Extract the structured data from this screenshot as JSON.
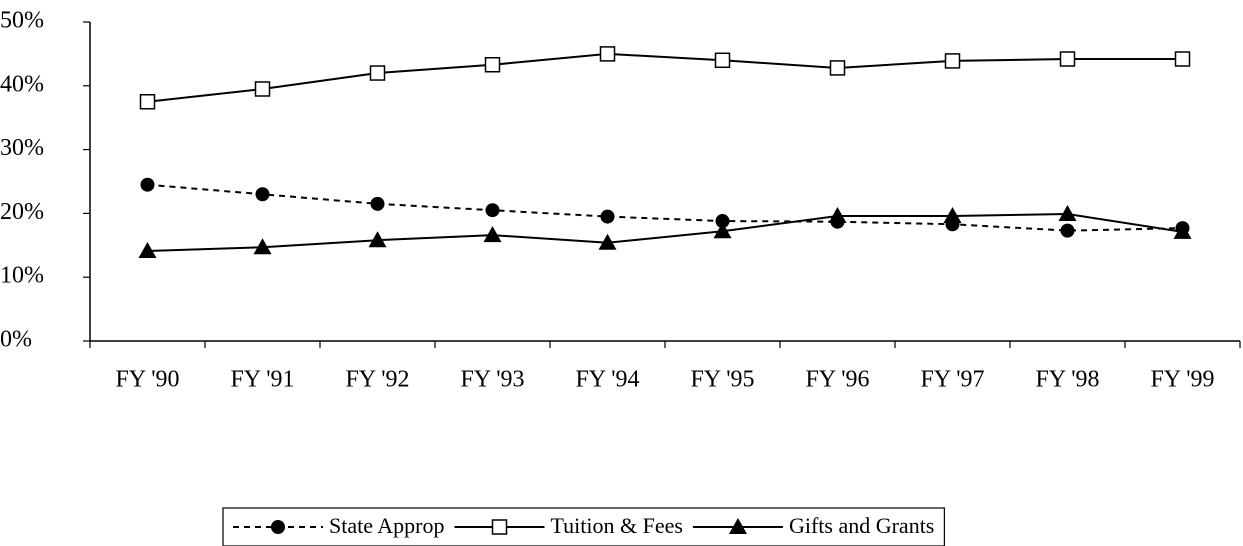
{
  "chart_data": {
    "type": "line",
    "categories": [
      "FY '90",
      "FY '91",
      "FY '92",
      "FY '93",
      "FY '94",
      "FY '95",
      "FY '96",
      "FY '97",
      "FY '98",
      "FY '99"
    ],
    "series": [
      {
        "name": "State Approp",
        "color": "#000000",
        "dashed": true,
        "marker": "circle",
        "values": [
          24.5,
          23,
          21.5,
          20.5,
          19.5,
          18.8,
          18.7,
          18.3,
          17.3,
          17.7
        ]
      },
      {
        "name": "Tuition & Fees",
        "color": "#000000",
        "dashed": false,
        "marker": "square",
        "values": [
          37.5,
          39.5,
          42,
          43.3,
          45,
          44,
          42.8,
          43.9,
          44.2,
          44.2
        ]
      },
      {
        "name": "Gifts and Grants",
        "color": "#000000",
        "dashed": false,
        "marker": "triangle",
        "values": [
          14.1,
          14.7,
          15.8,
          16.6,
          15.4,
          17.2,
          19.6,
          19.6,
          19.9,
          17.1
        ]
      }
    ],
    "ylim": [
      0,
      50
    ],
    "yticks": [
      {
        "value": 0,
        "label": "0%"
      },
      {
        "value": 10,
        "label": "10%"
      },
      {
        "value": 20,
        "label": "20%"
      },
      {
        "value": 30,
        "label": "30%"
      },
      {
        "value": 40,
        "label": "40%"
      },
      {
        "value": 50,
        "label": "50%"
      }
    ],
    "legend": "bottom"
  }
}
